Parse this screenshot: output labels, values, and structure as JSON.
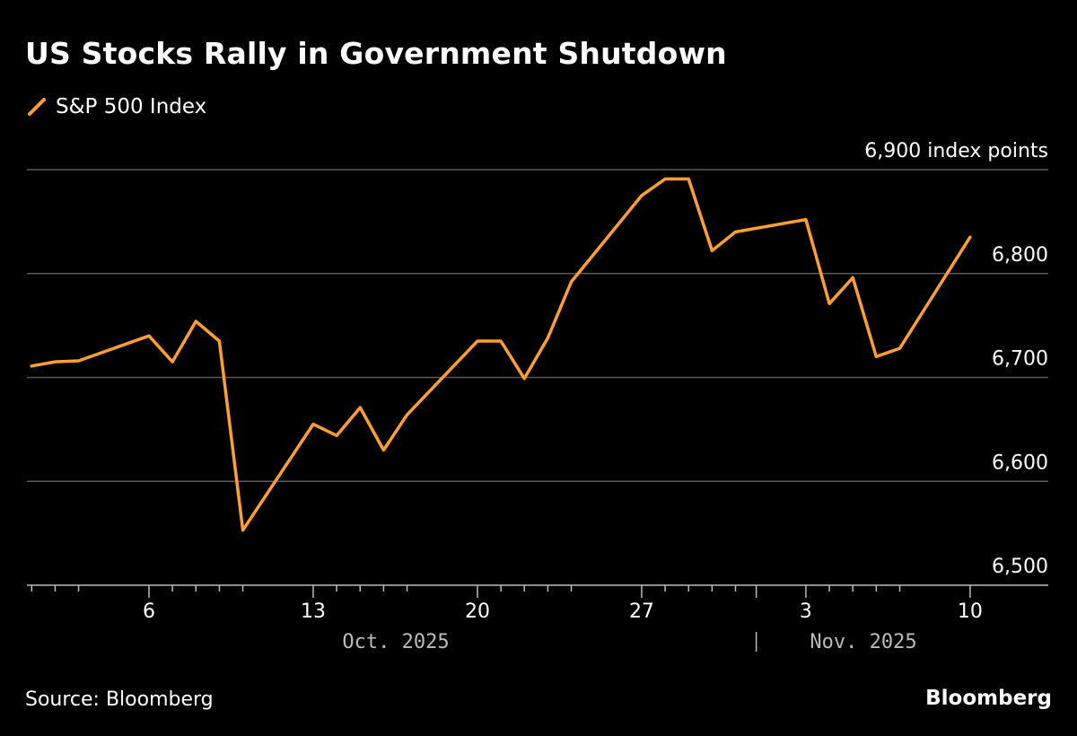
{
  "chart_data": {
    "type": "line",
    "title": "US Stocks Rally in Government Shutdown",
    "series": [
      {
        "name": "S&P 500 Index",
        "color": "#ff9f2e",
        "x": [
          "2025-10-01",
          "2025-10-02",
          "2025-10-03",
          "2025-10-06",
          "2025-10-07",
          "2025-10-08",
          "2025-10-09",
          "2025-10-10",
          "2025-10-13",
          "2025-10-14",
          "2025-10-15",
          "2025-10-16",
          "2025-10-17",
          "2025-10-20",
          "2025-10-21",
          "2025-10-22",
          "2025-10-23",
          "2025-10-24",
          "2025-10-27",
          "2025-10-28",
          "2025-10-29",
          "2025-10-30",
          "2025-10-31",
          "2025-11-03",
          "2025-11-04",
          "2025-11-05",
          "2025-11-06",
          "2025-11-07",
          "2025-11-10"
        ],
        "values": [
          6711,
          6715,
          6716,
          6740,
          6715,
          6754,
          6735,
          6553,
          6655,
          6644,
          6671,
          6630,
          6664,
          6735,
          6735,
          6699,
          6738,
          6792,
          6875,
          6891,
          6891,
          6822,
          6840,
          6852,
          6771,
          6796,
          6720,
          6728,
          6835
        ]
      }
    ],
    "ylim": [
      6500,
      6900
    ],
    "ylabel": "index points",
    "yticks": [
      {
        "value": 6900,
        "label": "6,900 index points"
      },
      {
        "value": 6800,
        "label": "6,800"
      },
      {
        "value": 6700,
        "label": "6,700"
      },
      {
        "value": 6600,
        "label": "6,600"
      },
      {
        "value": 6500,
        "label": "6,500"
      }
    ],
    "xticks": [
      {
        "date": "2025-10-06",
        "label": "6"
      },
      {
        "date": "2025-10-13",
        "label": "13"
      },
      {
        "date": "2025-10-20",
        "label": "20"
      },
      {
        "date": "2025-10-27",
        "label": "27"
      },
      {
        "date": "2025-11-03",
        "label": "3"
      },
      {
        "date": "2025-11-10",
        "label": "10"
      }
    ],
    "months": [
      {
        "label": "Oct. 2025"
      },
      {
        "label": "Nov. 2025"
      }
    ],
    "xrange": [
      "2025-09-30",
      "2025-11-11"
    ],
    "grid": true,
    "legend": "top-left"
  },
  "footer": {
    "source": "Source: Bloomberg",
    "brand": "Bloomberg"
  }
}
